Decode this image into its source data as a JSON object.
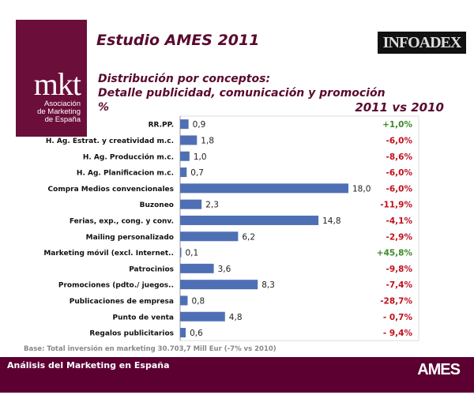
{
  "logo": {
    "mark": "mkt",
    "line1": "Asociación",
    "line2": "de Marketing",
    "line3": "de España"
  },
  "header": {
    "title": "Estudio AMES 2011",
    "partner_logo": "INFOADEX",
    "subtitle1": "Distribución por conceptos:",
    "subtitle2": "Detalle publicidad, comunicación y promoción",
    "unit": "%",
    "comparison_label": "2011 vs 2010"
  },
  "colors": {
    "bar": "#4f6fb5",
    "positive": "#3a8a2a",
    "negative": "#c0101a",
    "brand": "#5c0032"
  },
  "chart_data": {
    "type": "bar",
    "orientation": "horizontal",
    "xlim": [
      0,
      25.5
    ],
    "grid": false,
    "categories": [
      "RR.PP.",
      "H. Ag. Estrat. y creatividad m.c.",
      "H. Ag. Producción m.c.",
      "H. Ag. Planificacion m.c.",
      "Compra Medios convencionales",
      "Buzoneo",
      "Ferias, exp., cong. y conv.",
      "Mailing personalizado",
      "Marketing móvil (excl. Internet..",
      "Patrocinios",
      "Promociones (pdto./ juegos..",
      "Publicaciones de empresa",
      "Punto de venta",
      "Regalos publicitarios"
    ],
    "values": [
      0.9,
      1.8,
      1.0,
      0.7,
      18.0,
      2.3,
      14.8,
      6.2,
      0.1,
      3.6,
      8.3,
      0.8,
      4.8,
      0.6
    ],
    "data_labels": [
      "0,9",
      "1,8",
      "1,0",
      "0,7",
      "18,0",
      "2,3",
      "14,8",
      "6,2",
      "0,1",
      "3,6",
      "8,3",
      "0,8",
      "4,8",
      "0,6"
    ],
    "change_vs_2010": [
      "+1,0%",
      "-6,0%",
      "-8,6%",
      "-6,0%",
      "-6,0%",
      "-11,9%",
      "-4,1%",
      "-2,9%",
      "+45,8%",
      "-9,8%",
      "-7,4%",
      "-28,7%",
      "- 0,7%",
      "- 9,4%"
    ]
  },
  "base_note": "Base: Total inversión en marketing 30.703,7 Mill Eur  (-7% vs 2010)",
  "footer": {
    "title": "Análisis del Marketing en España",
    "logo": "AMES"
  }
}
